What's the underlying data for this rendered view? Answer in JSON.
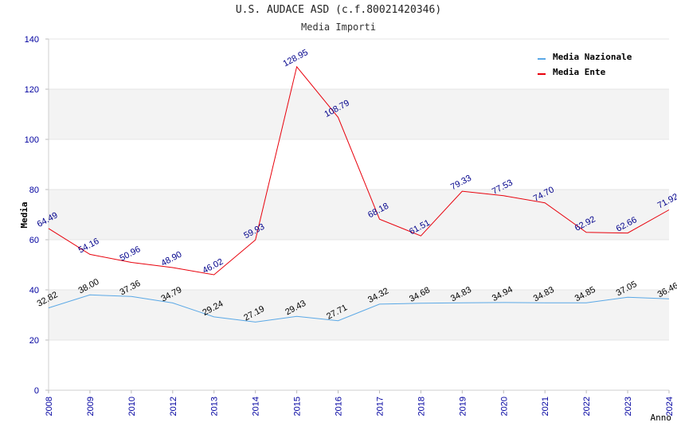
{
  "chart_data": {
    "type": "line",
    "title": "U.S. AUDACE ASD (c.f.80021420346)",
    "subtitle": "Media Importi",
    "xlabel": "Anno",
    "ylabel": "Media",
    "ylim": [
      0,
      140
    ],
    "yticks": [
      0,
      20,
      40,
      60,
      80,
      100,
      120,
      140
    ],
    "grid": "horizontal bands",
    "legend_position": "top-right",
    "categories": [
      "2008",
      "2009",
      "2010",
      "2012",
      "2013",
      "2014",
      "2015",
      "2016",
      "2017",
      "2018",
      "2019",
      "2020",
      "2021",
      "2022",
      "2023",
      "2024"
    ],
    "series": [
      {
        "name": "Media Nazionale",
        "color": "#5aa8e6",
        "label_color": "#000000",
        "values": [
          32.82,
          38.0,
          37.36,
          34.79,
          29.24,
          27.19,
          29.43,
          27.71,
          34.32,
          34.68,
          34.83,
          34.94,
          34.83,
          34.85,
          37.05,
          36.46
        ],
        "labels": [
          "32.82",
          "38.00",
          "37.36",
          "34.79",
          "29.24",
          "27.19",
          "29.43",
          "27.71",
          "34.32",
          "34.68",
          "34.83",
          "34.94",
          "34.83",
          "34.85",
          "37.05",
          "36.46"
        ]
      },
      {
        "name": "Media Ente",
        "color": "#e8000b",
        "label_color": "#00008b",
        "values": [
          64.49,
          54.16,
          50.96,
          48.9,
          46.02,
          59.93,
          128.95,
          108.79,
          68.18,
          61.51,
          79.33,
          77.53,
          74.7,
          62.92,
          62.66,
          71.92
        ],
        "labels": [
          "64.49",
          "54.16",
          "50.96",
          "48.90",
          "46.02",
          "59.93",
          "128.95",
          "108.79",
          "68.18",
          "61.51",
          "79.33",
          "77.53",
          "74.70",
          "62.92",
          "62.66",
          "71.92"
        ]
      }
    ]
  }
}
